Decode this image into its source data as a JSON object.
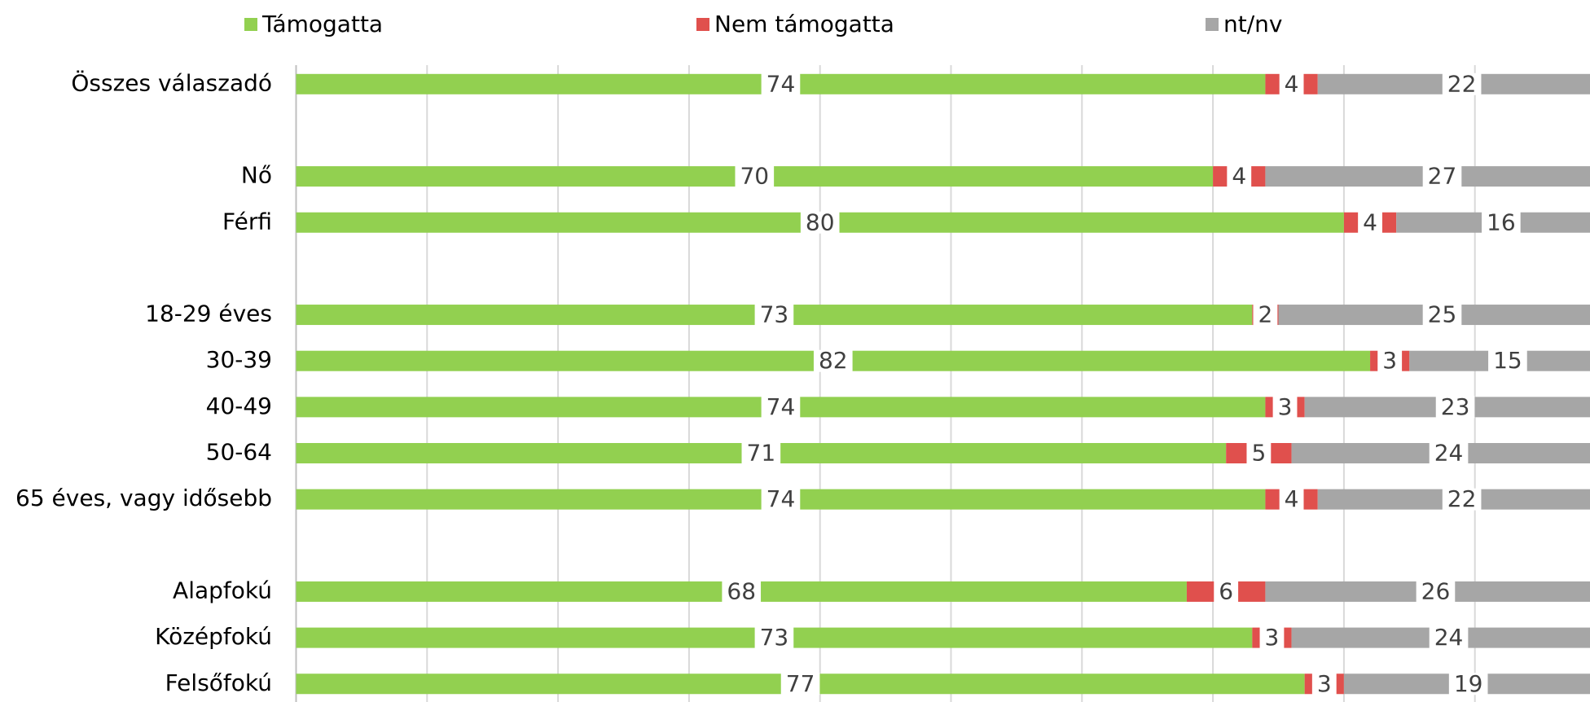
{
  "chart_data": {
    "type": "stacked-bar-horizontal",
    "categories": [
      "Összes válaszadó",
      null,
      "Nő",
      "Férfi",
      null,
      "18-29 éves",
      "30-39",
      "40-49",
      "50-64",
      "65 éves, vagy idősebb",
      null,
      "Alapfokú",
      "Középfokú",
      "Felsőfokú"
    ],
    "series": [
      {
        "name": "Támogatta",
        "color": "#92d050",
        "values": [
          74,
          null,
          70,
          80,
          null,
          73,
          82,
          74,
          71,
          74,
          null,
          68,
          73,
          77
        ]
      },
      {
        "name": "Nem támogatta",
        "color": "#e0504d",
        "values": [
          4,
          null,
          4,
          4,
          null,
          2,
          3,
          3,
          5,
          4,
          null,
          6,
          3,
          3
        ]
      },
      {
        "name": "nt/nv",
        "color": "#a6a6a6",
        "values": [
          22,
          null,
          27,
          16,
          null,
          25,
          15,
          23,
          24,
          22,
          null,
          26,
          24,
          19
        ]
      }
    ],
    "xlim": [
      0,
      100
    ],
    "xticks": [
      0,
      10,
      20,
      30,
      40,
      50,
      60,
      70,
      80,
      90,
      100
    ],
    "grid": true,
    "legend": "top"
  }
}
